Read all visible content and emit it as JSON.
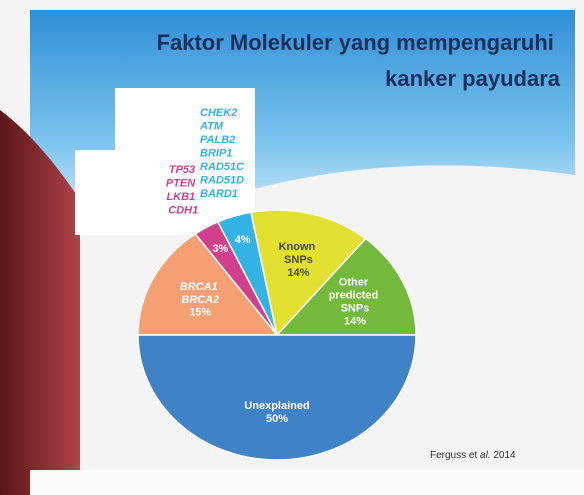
{
  "chart_data": {
    "type": "pie",
    "title": "Faktor Molekuler yang mempengaruhi kanker payudara",
    "categories": [
      "BRCA1 BRCA2",
      "TP53 PTEN LKB1 CDH1",
      "CHEK2 ATM PALB2 BRIP1 RAD51C RAD51D BARD1",
      "Known SNPs",
      "Other predicted SNPs",
      "Unexplained"
    ],
    "values": [
      15,
      3,
      4,
      14,
      14,
      50
    ],
    "value_labels": [
      "15%",
      "3%",
      "4%",
      "14%",
      "14%",
      "50%"
    ],
    "colors": [
      "#f4a072",
      "#d23f8c",
      "#33b3e3",
      "#e2e030",
      "#72b93c",
      "#3f82c6"
    ],
    "source": "Ferguss et al. 2014"
  }
}
